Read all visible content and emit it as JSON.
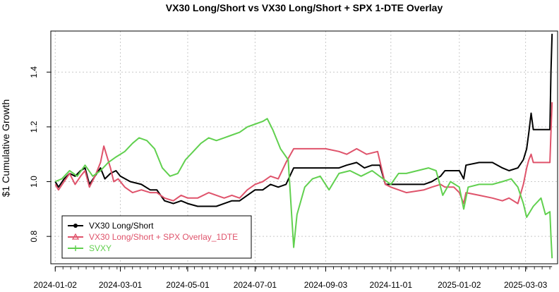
{
  "chart_data": {
    "type": "line",
    "title": "VX30 Long/Short vs VX30 Long/Short + SPX 1-DTE Overlay",
    "xlabel": "",
    "ylabel": "$1 Cumulative Growth",
    "x_ticks": [
      "2024-01-02",
      "2024-03-01",
      "2024-05-01",
      "2024-07-01",
      "2024-09-03",
      "2024-11-01",
      "2025-01-02",
      "2025-03-03"
    ],
    "x_range": [
      "2023-12-29",
      "2025-04-01"
    ],
    "y_ticks": [
      0.8,
      1.0,
      1.2,
      1.4
    ],
    "ylim": [
      0.7,
      1.55
    ],
    "grid": true,
    "legend_position": "bottom-left",
    "series": [
      {
        "name": "VX30 Long/Short",
        "color": "#000000",
        "marker": "circle",
        "points": [
          [
            "2024-01-02",
            1.0
          ],
          [
            "2024-01-05",
            0.98
          ],
          [
            "2024-01-10",
            1.01
          ],
          [
            "2024-01-15",
            1.03
          ],
          [
            "2024-01-20",
            1.02
          ],
          [
            "2024-01-25",
            1.04
          ],
          [
            "2024-01-29",
            1.05
          ],
          [
            "2024-02-02",
            0.99
          ],
          [
            "2024-02-07",
            1.02
          ],
          [
            "2024-02-12",
            1.05
          ],
          [
            "2024-02-16",
            1.01
          ],
          [
            "2024-02-21",
            1.03
          ],
          [
            "2024-02-26",
            1.04
          ],
          [
            "2024-03-01",
            1.02
          ],
          [
            "2024-03-10",
            1.0
          ],
          [
            "2024-03-20",
            0.99
          ],
          [
            "2024-03-28",
            0.97
          ],
          [
            "2024-04-03",
            0.97
          ],
          [
            "2024-04-10",
            0.93
          ],
          [
            "2024-04-18",
            0.92
          ],
          [
            "2024-04-25",
            0.93
          ],
          [
            "2024-05-01",
            0.92
          ],
          [
            "2024-05-10",
            0.91
          ],
          [
            "2024-05-20",
            0.91
          ],
          [
            "2024-05-27",
            0.91
          ],
          [
            "2024-06-03",
            0.92
          ],
          [
            "2024-06-10",
            0.93
          ],
          [
            "2024-06-17",
            0.93
          ],
          [
            "2024-06-24",
            0.95
          ],
          [
            "2024-07-01",
            0.97
          ],
          [
            "2024-07-08",
            0.97
          ],
          [
            "2024-07-15",
            0.99
          ],
          [
            "2024-07-22",
            0.98
          ],
          [
            "2024-07-29",
            0.99
          ],
          [
            "2024-08-05",
            1.05
          ],
          [
            "2024-08-15",
            1.05
          ],
          [
            "2024-09-03",
            1.05
          ],
          [
            "2024-09-15",
            1.05
          ],
          [
            "2024-09-22",
            1.06
          ],
          [
            "2024-10-01",
            1.07
          ],
          [
            "2024-10-08",
            1.05
          ],
          [
            "2024-10-15",
            1.06
          ],
          [
            "2024-10-22",
            1.06
          ],
          [
            "2024-10-27",
            0.99
          ],
          [
            "2024-11-01",
            0.99
          ],
          [
            "2024-11-15",
            0.99
          ],
          [
            "2024-12-01",
            0.99
          ],
          [
            "2024-12-08",
            1.0
          ],
          [
            "2024-12-16",
            1.02
          ],
          [
            "2024-12-20",
            1.04
          ],
          [
            "2024-12-28",
            1.04
          ],
          [
            "2025-01-02",
            1.04
          ],
          [
            "2025-01-06",
            1.01
          ],
          [
            "2025-01-08",
            1.06
          ],
          [
            "2025-01-20",
            1.07
          ],
          [
            "2025-02-01",
            1.07
          ],
          [
            "2025-02-10",
            1.05
          ],
          [
            "2025-02-16",
            1.04
          ],
          [
            "2025-02-24",
            1.05
          ],
          [
            "2025-03-01",
            1.08
          ],
          [
            "2025-03-04",
            1.12
          ],
          [
            "2025-03-06",
            1.18
          ],
          [
            "2025-03-08",
            1.25
          ],
          [
            "2025-03-10",
            1.19
          ],
          [
            "2025-03-25",
            1.19
          ],
          [
            "2025-03-26",
            1.4
          ],
          [
            "2025-03-27",
            1.54
          ]
        ]
      },
      {
        "name": "VX30 Long/Short + SPX Overlay_1DTE",
        "color": "#DF536B",
        "marker": "triangle",
        "points": [
          [
            "2024-01-02",
            0.99
          ],
          [
            "2024-01-05",
            0.97
          ],
          [
            "2024-01-10",
            1.0
          ],
          [
            "2024-01-15",
            1.03
          ],
          [
            "2024-01-20",
            0.99
          ],
          [
            "2024-01-25",
            1.02
          ],
          [
            "2024-01-29",
            1.04
          ],
          [
            "2024-02-02",
            0.98
          ],
          [
            "2024-02-07",
            1.02
          ],
          [
            "2024-02-12",
            1.07
          ],
          [
            "2024-02-15",
            1.13
          ],
          [
            "2024-02-18",
            1.09
          ],
          [
            "2024-02-21",
            1.05
          ],
          [
            "2024-02-24",
            1.0
          ],
          [
            "2024-02-28",
            1.01
          ],
          [
            "2024-03-05",
            0.98
          ],
          [
            "2024-03-12",
            0.96
          ],
          [
            "2024-03-20",
            0.97
          ],
          [
            "2024-03-28",
            0.96
          ],
          [
            "2024-04-03",
            0.96
          ],
          [
            "2024-04-10",
            0.94
          ],
          [
            "2024-04-18",
            0.93
          ],
          [
            "2024-04-25",
            0.95
          ],
          [
            "2024-05-01",
            0.94
          ],
          [
            "2024-05-10",
            0.94
          ],
          [
            "2024-05-20",
            0.96
          ],
          [
            "2024-05-27",
            0.95
          ],
          [
            "2024-06-03",
            0.94
          ],
          [
            "2024-06-10",
            0.95
          ],
          [
            "2024-06-17",
            0.94
          ],
          [
            "2024-06-24",
            0.97
          ],
          [
            "2024-07-01",
            0.99
          ],
          [
            "2024-07-08",
            1.0
          ],
          [
            "2024-07-15",
            1.02
          ],
          [
            "2024-07-22",
            1.01
          ],
          [
            "2024-07-29",
            1.07
          ],
          [
            "2024-08-05",
            1.12
          ],
          [
            "2024-08-15",
            1.12
          ],
          [
            "2024-09-03",
            1.12
          ],
          [
            "2024-09-15",
            1.11
          ],
          [
            "2024-09-22",
            1.1
          ],
          [
            "2024-10-01",
            1.12
          ],
          [
            "2024-10-10",
            1.1
          ],
          [
            "2024-10-20",
            1.11
          ],
          [
            "2024-10-27",
            0.99
          ],
          [
            "2024-11-01",
            0.98
          ],
          [
            "2024-11-15",
            0.96
          ],
          [
            "2024-12-01",
            0.97
          ],
          [
            "2024-12-08",
            0.98
          ],
          [
            "2024-12-16",
            0.99
          ],
          [
            "2024-12-20",
            0.98
          ],
          [
            "2024-12-28",
            0.98
          ],
          [
            "2025-01-02",
            0.96
          ],
          [
            "2025-01-06",
            0.92
          ],
          [
            "2025-01-08",
            0.96
          ],
          [
            "2025-01-20",
            0.95
          ],
          [
            "2025-02-01",
            0.94
          ],
          [
            "2025-02-10",
            0.93
          ],
          [
            "2025-02-16",
            0.94
          ],
          [
            "2025-02-24",
            0.92
          ],
          [
            "2025-03-01",
            0.99
          ],
          [
            "2025-03-04",
            1.05
          ],
          [
            "2025-03-06",
            1.08
          ],
          [
            "2025-03-08",
            1.1
          ],
          [
            "2025-03-10",
            1.07
          ],
          [
            "2025-03-25",
            1.07
          ],
          [
            "2025-03-26",
            1.18
          ],
          [
            "2025-03-27",
            1.29
          ]
        ]
      },
      {
        "name": "SVXY",
        "color": "#61D04F",
        "marker": "plus",
        "points": [
          [
            "2024-01-02",
            1.0
          ],
          [
            "2024-01-08",
            1.01
          ],
          [
            "2024-01-15",
            1.04
          ],
          [
            "2024-01-22",
            1.02
          ],
          [
            "2024-01-29",
            1.06
          ],
          [
            "2024-02-05",
            1.02
          ],
          [
            "2024-02-12",
            1.04
          ],
          [
            "2024-02-19",
            1.07
          ],
          [
            "2024-02-26",
            1.09
          ],
          [
            "2024-03-05",
            1.11
          ],
          [
            "2024-03-12",
            1.14
          ],
          [
            "2024-03-18",
            1.16
          ],
          [
            "2024-03-25",
            1.15
          ],
          [
            "2024-04-01",
            1.12
          ],
          [
            "2024-04-08",
            1.05
          ],
          [
            "2024-04-15",
            1.02
          ],
          [
            "2024-04-22",
            1.03
          ],
          [
            "2024-04-29",
            1.08
          ],
          [
            "2024-05-06",
            1.11
          ],
          [
            "2024-05-13",
            1.14
          ],
          [
            "2024-05-20",
            1.16
          ],
          [
            "2024-05-27",
            1.15
          ],
          [
            "2024-06-03",
            1.16
          ],
          [
            "2024-06-10",
            1.17
          ],
          [
            "2024-06-17",
            1.18
          ],
          [
            "2024-06-24",
            1.2
          ],
          [
            "2024-07-01",
            1.21
          ],
          [
            "2024-07-08",
            1.22
          ],
          [
            "2024-07-12",
            1.23
          ],
          [
            "2024-07-17",
            1.19
          ],
          [
            "2024-07-24",
            1.12
          ],
          [
            "2024-07-31",
            1.08
          ],
          [
            "2024-08-05",
            0.76
          ],
          [
            "2024-08-08",
            0.88
          ],
          [
            "2024-08-15",
            0.98
          ],
          [
            "2024-08-22",
            1.01
          ],
          [
            "2024-08-29",
            1.02
          ],
          [
            "2024-09-06",
            0.97
          ],
          [
            "2024-09-15",
            1.03
          ],
          [
            "2024-09-25",
            1.04
          ],
          [
            "2024-10-05",
            1.02
          ],
          [
            "2024-10-15",
            1.04
          ],
          [
            "2024-10-25",
            1.01
          ],
          [
            "2024-11-01",
            0.99
          ],
          [
            "2024-11-08",
            1.03
          ],
          [
            "2024-11-15",
            1.03
          ],
          [
            "2024-11-25",
            1.04
          ],
          [
            "2024-12-05",
            1.05
          ],
          [
            "2024-12-12",
            1.04
          ],
          [
            "2024-12-18",
            0.95
          ],
          [
            "2024-12-25",
            1.0
          ],
          [
            "2025-01-02",
            0.98
          ],
          [
            "2025-01-06",
            0.9
          ],
          [
            "2025-01-10",
            0.98
          ],
          [
            "2025-01-20",
            0.99
          ],
          [
            "2025-02-01",
            0.99
          ],
          [
            "2025-02-10",
            1.0
          ],
          [
            "2025-02-18",
            1.01
          ],
          [
            "2025-02-24",
            0.98
          ],
          [
            "2025-03-01",
            0.92
          ],
          [
            "2025-03-04",
            0.87
          ],
          [
            "2025-03-10",
            0.91
          ],
          [
            "2025-03-17",
            0.94
          ],
          [
            "2025-03-21",
            0.88
          ],
          [
            "2025-03-25",
            0.89
          ],
          [
            "2025-03-26",
            0.8
          ],
          [
            "2025-03-27",
            0.72
          ]
        ]
      }
    ]
  }
}
